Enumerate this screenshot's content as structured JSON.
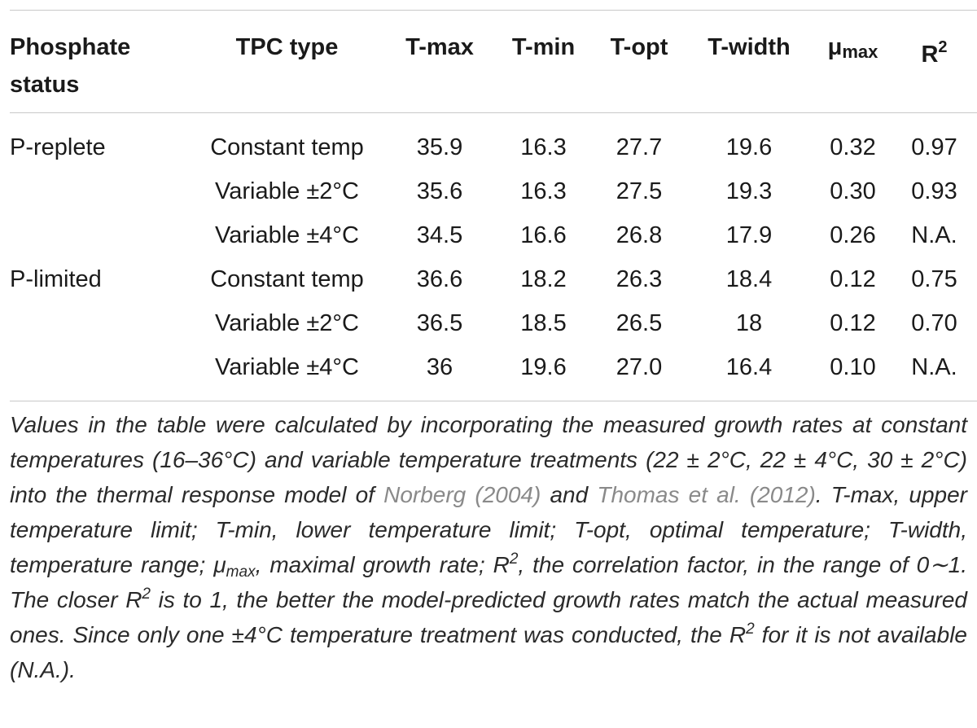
{
  "table": {
    "header": [
      {
        "text": "Phosphate status"
      },
      {
        "text": "TPC type"
      },
      {
        "text": "T-max"
      },
      {
        "text": "T-min"
      },
      {
        "text": "T-opt"
      },
      {
        "text": "T-width"
      },
      {
        "text": "μ",
        "sub": "max"
      },
      {
        "text": "R",
        "sup": "2"
      }
    ],
    "groups": [
      {
        "status": "P-replete",
        "rows": [
          [
            "Constant temp",
            "35.9",
            "16.3",
            "27.7",
            "19.6",
            "0.32",
            "0.97"
          ],
          [
            "Variable ±2°C",
            "35.6",
            "16.3",
            "27.5",
            "19.3",
            "0.30",
            "0.93"
          ],
          [
            "Variable ±4°C",
            "34.5",
            "16.6",
            "26.8",
            "17.9",
            "0.26",
            "N.A."
          ]
        ]
      },
      {
        "status": "P-limited",
        "rows": [
          [
            "Constant temp",
            "36.6",
            "18.2",
            "26.3",
            "18.4",
            "0.12",
            "0.75"
          ],
          [
            "Variable ±2°C",
            "36.5",
            "18.5",
            "26.5",
            "18",
            "0.12",
            "0.70"
          ],
          [
            "Variable ±4°C",
            "36",
            "19.6",
            "27.0",
            "16.4",
            "0.10",
            "N.A."
          ]
        ]
      }
    ]
  },
  "footnote": [
    "Values in the table were calculated by incorporating the measured growth rates at constant temperatures (16–36°C) and variable temperature treatments (22 ± 2°C, 22 ± 4°C, 30 ± 2°C) into the thermal response model of ",
    {
      "link": "Norberg (2004)"
    },
    " and ",
    {
      "link": "Thomas et al. (2012)"
    },
    ". T-max, upper temperature limit; T-min, lower temperature limit; T-opt, optimal temperature; T-width, temperature range; μ",
    {
      "sub": "max"
    },
    ", maximal growth rate; R",
    {
      "sup": "2"
    },
    ", the correlation factor, in the range of 0∼1. The closer R",
    {
      "sup": "2"
    },
    " is to 1, the better the model-predicted growth rates match the actual measured ones. Since only one ±4°C temperature treatment was conducted, the R",
    {
      "sup": "2"
    },
    " for it is not available (N.A.)."
  ]
}
